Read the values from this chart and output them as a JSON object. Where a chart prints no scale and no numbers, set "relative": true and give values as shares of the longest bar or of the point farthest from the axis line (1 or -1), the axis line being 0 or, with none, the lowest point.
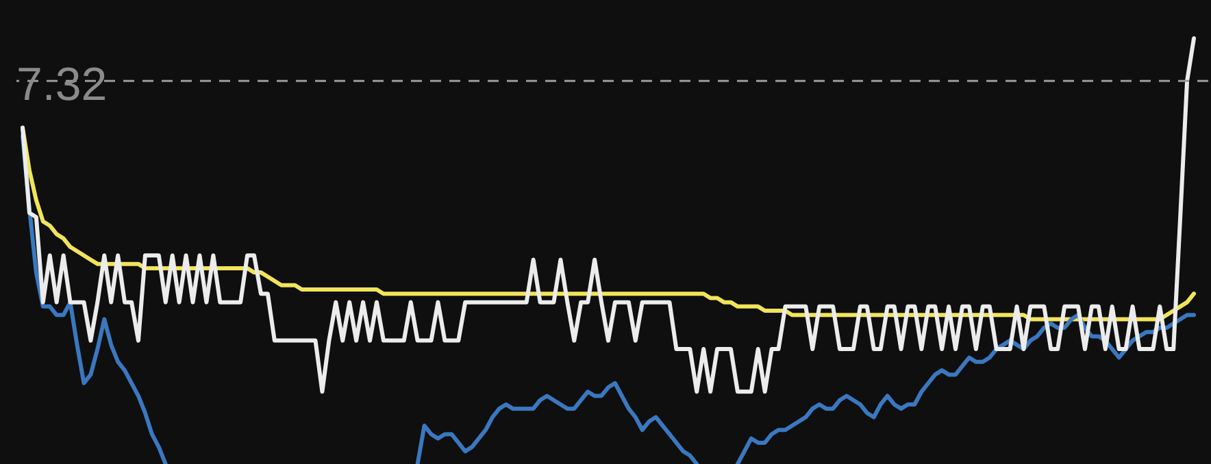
{
  "chart_data": {
    "type": "line",
    "relative": true,
    "line_style": "solid",
    "marker": "none",
    "categories": [
      null,
      null,
      null,
      null,
      null,
      null,
      null,
      null,
      null,
      null,
      null,
      null,
      null,
      null,
      null,
      null,
      null,
      null,
      null,
      null,
      null,
      null,
      null,
      null,
      null,
      null,
      null,
      null,
      null,
      null,
      null,
      null,
      null,
      null,
      null,
      null,
      null,
      null,
      null,
      null,
      null,
      null,
      null,
      null,
      null,
      null,
      null,
      null,
      null,
      null,
      null,
      null,
      null,
      null,
      null,
      null,
      null,
      null,
      null,
      null,
      null,
      null,
      null,
      null,
      null,
      null,
      null,
      null,
      null,
      null,
      null,
      null,
      null,
      null,
      null,
      null,
      null,
      null,
      null,
      null,
      null,
      null,
      null,
      null,
      null,
      null,
      null,
      null,
      null,
      null,
      null,
      null,
      null,
      null,
      null,
      null,
      null,
      null,
      null,
      null,
      null,
      null,
      null,
      null,
      null,
      null,
      null,
      null,
      null,
      null,
      null,
      null,
      null,
      null,
      null,
      null,
      null,
      null,
      null,
      null,
      null,
      null,
      null,
      null,
      null,
      null,
      null,
      null,
      null,
      null,
      null,
      null,
      null,
      null,
      null,
      null,
      null,
      null,
      null,
      null,
      null,
      null,
      null,
      null,
      null,
      null,
      null,
      null,
      null,
      null,
      null,
      null,
      null,
      null,
      null,
      null,
      null,
      null,
      null,
      null,
      null,
      null,
      null,
      null,
      null,
      null,
      null,
      null,
      null,
      null,
      null,
      null,
      null
    ],
    "annotations": [
      "7.32"
    ],
    "ref_lines": [
      {
        "axis": "y",
        "value": 0.9,
        "color": "#9a9a9a",
        "line_style": "dashed"
      }
    ],
    "series": [
      {
        "color": "#f2e45a",
        "values": [
          0.79,
          0.69,
          0.62,
          0.57,
          0.56,
          0.54,
          0.53,
          0.51,
          0.5,
          0.49,
          0.48,
          0.47,
          0.47,
          0.47,
          0.47,
          0.47,
          0.47,
          0.47,
          0.46,
          0.46,
          0.46,
          0.46,
          0.46,
          0.46,
          0.46,
          0.46,
          0.46,
          0.46,
          0.46,
          0.46,
          0.46,
          0.46,
          0.46,
          0.46,
          0.45,
          0.45,
          0.44,
          0.43,
          0.42,
          0.42,
          0.42,
          0.41,
          0.41,
          0.41,
          0.41,
          0.41,
          0.41,
          0.41,
          0.41,
          0.41,
          0.41,
          0.41,
          0.41,
          0.4,
          0.4,
          0.4,
          0.4,
          0.4,
          0.4,
          0.4,
          0.4,
          0.4,
          0.4,
          0.4,
          0.4,
          0.4,
          0.4,
          0.4,
          0.4,
          0.4,
          0.4,
          0.4,
          0.4,
          0.4,
          0.4,
          0.4,
          0.4,
          0.4,
          0.4,
          0.4,
          0.4,
          0.4,
          0.4,
          0.4,
          0.4,
          0.4,
          0.4,
          0.4,
          0.4,
          0.4,
          0.4,
          0.4,
          0.4,
          0.4,
          0.4,
          0.4,
          0.4,
          0.4,
          0.4,
          0.4,
          0.4,
          0.39,
          0.39,
          0.38,
          0.38,
          0.37,
          0.37,
          0.37,
          0.37,
          0.36,
          0.36,
          0.36,
          0.36,
          0.35,
          0.35,
          0.35,
          0.35,
          0.35,
          0.35,
          0.35,
          0.35,
          0.35,
          0.35,
          0.35,
          0.35,
          0.35,
          0.35,
          0.35,
          0.35,
          0.35,
          0.35,
          0.35,
          0.35,
          0.35,
          0.35,
          0.35,
          0.35,
          0.35,
          0.35,
          0.35,
          0.35,
          0.35,
          0.35,
          0.35,
          0.35,
          0.35,
          0.35,
          0.35,
          0.34,
          0.34,
          0.34,
          0.34,
          0.34,
          0.34,
          0.34,
          0.34,
          0.34,
          0.34,
          0.34,
          0.34,
          0.34,
          0.34,
          0.34,
          0.34,
          0.34,
          0.34,
          0.34,
          0.34,
          0.35,
          0.36,
          0.37,
          0.38,
          0.4
        ]
      },
      {
        "color": "#3a78c0",
        "values": [
          0.77,
          0.6,
          0.45,
          0.37,
          0.37,
          0.35,
          0.35,
          0.38,
          0.28,
          0.19,
          0.21,
          0.27,
          0.34,
          0.28,
          0.24,
          0.22,
          0.19,
          0.16,
          0.12,
          0.07,
          0.04,
          0.0,
          null,
          null,
          null,
          null,
          null,
          null,
          null,
          null,
          null,
          null,
          null,
          null,
          null,
          null,
          null,
          null,
          null,
          null,
          null,
          null,
          null,
          null,
          null,
          null,
          null,
          null,
          null,
          null,
          null,
          null,
          null,
          null,
          null,
          null,
          null,
          null,
          0.0,
          0.09,
          0.07,
          0.06,
          0.07,
          0.07,
          0.05,
          0.03,
          0.04,
          0.06,
          0.08,
          0.11,
          0.13,
          0.14,
          0.13,
          0.13,
          0.13,
          0.13,
          0.15,
          0.16,
          0.15,
          0.14,
          0.13,
          0.13,
          0.15,
          0.17,
          0.16,
          0.16,
          0.18,
          0.19,
          0.16,
          0.13,
          0.11,
          0.08,
          0.1,
          0.11,
          0.09,
          0.07,
          0.05,
          0.03,
          0.02,
          0.0,
          null,
          null,
          null,
          null,
          null,
          0.0,
          0.03,
          0.06,
          0.05,
          0.05,
          0.07,
          0.08,
          0.08,
          0.09,
          0.1,
          0.11,
          0.13,
          0.14,
          0.13,
          0.13,
          0.15,
          0.16,
          0.15,
          0.14,
          0.12,
          0.11,
          0.14,
          0.16,
          0.14,
          0.13,
          0.14,
          0.14,
          0.17,
          0.19,
          0.21,
          0.22,
          0.21,
          0.21,
          0.23,
          0.25,
          0.24,
          0.24,
          0.25,
          0.27,
          0.28,
          0.29,
          0.28,
          0.27,
          0.29,
          0.3,
          0.32,
          0.33,
          0.32,
          0.32,
          0.34,
          0.35,
          0.32,
          0.3,
          0.3,
          0.29,
          0.27,
          0.25,
          0.27,
          0.29,
          0.3,
          0.31,
          0.31,
          0.32,
          0.32,
          0.33,
          0.34,
          0.35,
          0.35
        ]
      },
      {
        "color": "#ececec",
        "values": [
          0.79,
          0.59,
          0.58,
          0.38,
          0.49,
          0.38,
          0.49,
          0.38,
          0.38,
          0.38,
          0.29,
          0.38,
          0.49,
          0.38,
          0.49,
          0.38,
          0.38,
          0.29,
          0.49,
          0.49,
          0.49,
          0.38,
          0.49,
          0.38,
          0.49,
          0.38,
          0.49,
          0.38,
          0.49,
          0.38,
          0.38,
          0.38,
          0.38,
          0.49,
          0.49,
          0.4,
          0.4,
          0.29,
          0.29,
          0.29,
          0.29,
          0.29,
          0.29,
          0.29,
          0.17,
          0.29,
          0.38,
          0.29,
          0.38,
          0.29,
          0.38,
          0.29,
          0.38,
          0.29,
          0.29,
          0.29,
          0.29,
          0.38,
          0.29,
          0.29,
          0.29,
          0.38,
          0.29,
          0.29,
          0.29,
          0.38,
          0.38,
          0.38,
          0.38,
          0.38,
          0.38,
          0.38,
          0.38,
          0.38,
          0.38,
          0.48,
          0.38,
          0.38,
          0.38,
          0.48,
          0.38,
          0.29,
          0.38,
          0.38,
          0.48,
          0.38,
          0.29,
          0.38,
          0.38,
          0.38,
          0.29,
          0.38,
          0.38,
          0.38,
          0.38,
          0.38,
          0.27,
          0.27,
          0.27,
          0.17,
          0.27,
          0.17,
          0.27,
          0.27,
          0.27,
          0.17,
          0.17,
          0.17,
          0.27,
          0.17,
          0.27,
          0.27,
          0.37,
          0.37,
          0.37,
          0.37,
          0.27,
          0.37,
          0.37,
          0.37,
          0.27,
          0.27,
          0.27,
          0.37,
          0.37,
          0.27,
          0.27,
          0.37,
          0.37,
          0.27,
          0.37,
          0.37,
          0.27,
          0.37,
          0.37,
          0.27,
          0.37,
          0.27,
          0.37,
          0.37,
          0.27,
          0.37,
          0.37,
          0.27,
          0.27,
          0.27,
          0.37,
          0.27,
          0.37,
          0.37,
          0.37,
          0.27,
          0.27,
          0.37,
          0.37,
          0.37,
          0.27,
          0.37,
          0.37,
          0.27,
          0.37,
          0.27,
          0.27,
          0.37,
          0.27,
          0.27,
          0.27,
          0.37,
          0.27,
          0.27,
          0.58,
          0.9,
          1.0
        ]
      }
    ]
  }
}
